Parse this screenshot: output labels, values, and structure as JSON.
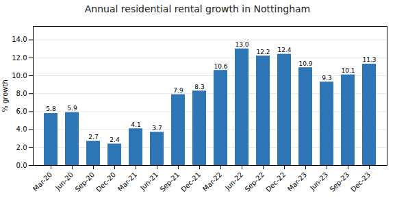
{
  "chart_data": {
    "type": "bar",
    "title": "Annual residential rental growth in Nottingham",
    "categories": [
      "Mar-20",
      "Jun-20",
      "Sep-20",
      "Dec-20",
      "Mar-21",
      "Jun-21",
      "Sep-21",
      "Dec-21",
      "Mar-22",
      "Jun-22",
      "Sep-22",
      "Dec-22",
      "Mar-23",
      "Jun-23",
      "Sep-23",
      "Dec-23"
    ],
    "values": [
      5.8,
      5.9,
      2.7,
      2.4,
      4.1,
      3.7,
      7.9,
      8.3,
      10.6,
      13.0,
      12.2,
      12.4,
      10.9,
      9.3,
      10.1,
      11.3
    ],
    "value_labels": [
      "5.8",
      "5.9",
      "2.7",
      "2.4",
      "4.1",
      "3.7",
      "7.9",
      "8.3",
      "10.6",
      "13.0",
      "12.2",
      "12.4",
      "10.9",
      "9.3",
      "10.1",
      "11.3"
    ],
    "color": "#2E75B6",
    "ylabel": "% growth",
    "ylim": [
      0,
      15.5
    ],
    "yticks": [
      {
        "value": 0,
        "label": "0.0"
      },
      {
        "value": 2,
        "label": "2.0"
      },
      {
        "value": 4,
        "label": "4.0"
      },
      {
        "value": 6,
        "label": "6.0"
      },
      {
        "value": 8,
        "label": "8.0"
      },
      {
        "value": 10,
        "label": "10.0"
      },
      {
        "value": 12,
        "label": "12.0"
      },
      {
        "value": 14,
        "label": "14.0"
      }
    ],
    "grid": true,
    "data_labels": true
  }
}
